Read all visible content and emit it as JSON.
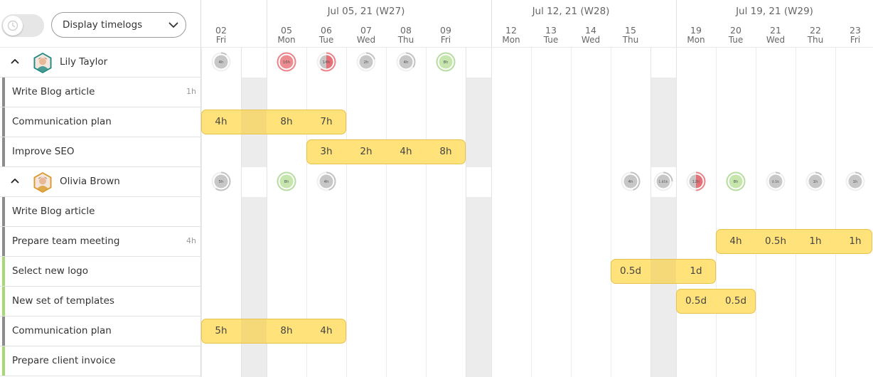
{
  "toolbar": {
    "timer_toggle": {
      "icon": "clock-icon",
      "on": false
    },
    "display_select": {
      "value": "Display timelogs",
      "icon": "chevron-down-icon"
    }
  },
  "calendar": {
    "weeks": [
      {
        "label": "Jul 05, 21 (W27)"
      },
      {
        "label": "Jul 12, 21 (W28)"
      },
      {
        "label": "Jul 19, 21 (W29)"
      }
    ],
    "days": [
      {
        "num": "02",
        "name": "Fri",
        "weekend_after": true
      },
      {
        "num": "05",
        "name": "Mon"
      },
      {
        "num": "06",
        "name": "Tue"
      },
      {
        "num": "07",
        "name": "Wed"
      },
      {
        "num": "08",
        "name": "Thu"
      },
      {
        "num": "09",
        "name": "Fri",
        "weekend_after": true
      },
      {
        "num": "12",
        "name": "Mon"
      },
      {
        "num": "13",
        "name": "Tue"
      },
      {
        "num": "14",
        "name": "Wed"
      },
      {
        "num": "15",
        "name": "Thu",
        "weekend_after": true
      },
      {
        "num": "19",
        "name": "Mon"
      },
      {
        "num": "20",
        "name": "Tue"
      },
      {
        "num": "21",
        "name": "Wed"
      },
      {
        "num": "22",
        "name": "Thu"
      },
      {
        "num": "23",
        "name": "Fri"
      }
    ]
  },
  "colors": {
    "ring_green": "#b7dea0",
    "ring_red": "#e98489",
    "ring_grey": "#c3c3c3",
    "bar_fill": "#ffe27a",
    "bar_border": "#e6c34a",
    "task_grey": "#8c8c8c",
    "task_green": "#a6d975",
    "weekend": "#ececec"
  },
  "users": [
    {
      "name": "Lily Taylor",
      "avatar": "avatar-lily",
      "avatar_color": "#1f8a83",
      "rings": [
        {
          "day": 0,
          "label": "4h",
          "load": 0.1,
          "color": "grey"
        },
        {
          "day": 1,
          "label": "16h",
          "load": 1.0,
          "color": "red"
        },
        {
          "day": 2,
          "label": "14h",
          "load": 0.6,
          "color": "red"
        },
        {
          "day": 3,
          "label": "2h",
          "load": 0.2,
          "color": "grey"
        },
        {
          "day": 4,
          "label": "4h",
          "load": 0.35,
          "color": "grey"
        },
        {
          "day": 5,
          "label": "8h",
          "load": 1.0,
          "color": "green"
        }
      ],
      "tasks": [
        {
          "name": "Write Blog article",
          "hours": "1h",
          "status": "grey",
          "bars": []
        },
        {
          "name": "Communication plan",
          "hours": "",
          "status": "grey",
          "bars": [
            {
              "start": 0,
              "end": 2,
              "values": [
                "4h",
                "8h",
                "7h"
              ]
            }
          ]
        },
        {
          "name": "Improve SEO",
          "hours": "",
          "status": "grey",
          "bars": [
            {
              "start": 2,
              "end": 5,
              "values": [
                "3h",
                "2h",
                "4h",
                "8h"
              ]
            }
          ]
        }
      ]
    },
    {
      "name": "Olivia Brown",
      "avatar": "avatar-olivia",
      "avatar_color": "#d99a2b",
      "rings": [
        {
          "day": 0,
          "label": "5h",
          "load": 0.6,
          "color": "grey"
        },
        {
          "day": 1,
          "label": "8h",
          "load": 1.0,
          "color": "green"
        },
        {
          "day": 2,
          "label": "4h",
          "load": 0.45,
          "color": "grey"
        },
        {
          "day": 9,
          "label": "4h",
          "load": 0.45,
          "color": "grey"
        },
        {
          "day": "weekend3",
          "label": "1.85h",
          "load": 0.25,
          "color": "grey"
        },
        {
          "day": 10,
          "label": "12h",
          "load": 0.5,
          "color": "red"
        },
        {
          "day": 11,
          "label": "8h",
          "load": 1.0,
          "color": "green"
        },
        {
          "day": 12,
          "label": "0.5h",
          "load": 0.08,
          "color": "grey"
        },
        {
          "day": 13,
          "label": "1h",
          "load": 0.12,
          "color": "grey"
        },
        {
          "day": 14,
          "label": "1h",
          "load": 0.12,
          "color": "grey"
        }
      ],
      "tasks": [
        {
          "name": "Write Blog article",
          "hours": "",
          "status": "grey",
          "bars": []
        },
        {
          "name": "Prepare team meeting",
          "hours": "4h",
          "status": "grey",
          "bars": [
            {
              "start": 11,
              "end": 14,
              "values": [
                "4h",
                "0.5h",
                "1h",
                "1h"
              ]
            }
          ]
        },
        {
          "name": "Select new logo",
          "hours": "",
          "status": "green",
          "bars": [
            {
              "start": 9,
              "end": 10,
              "values": [
                "0.5d",
                "1d"
              ]
            }
          ]
        },
        {
          "name": "New set of templates",
          "hours": "",
          "status": "green",
          "bars": [
            {
              "start": 10,
              "end": 11,
              "values": [
                "0.5d",
                "0.5d"
              ]
            }
          ]
        },
        {
          "name": "Communication plan",
          "hours": "",
          "status": "grey",
          "bars": [
            {
              "start": 0,
              "end": 2,
              "values": [
                "5h",
                "8h",
                "4h"
              ]
            }
          ]
        },
        {
          "name": "Prepare client invoice",
          "hours": "",
          "status": "green",
          "bars": []
        }
      ]
    }
  ]
}
